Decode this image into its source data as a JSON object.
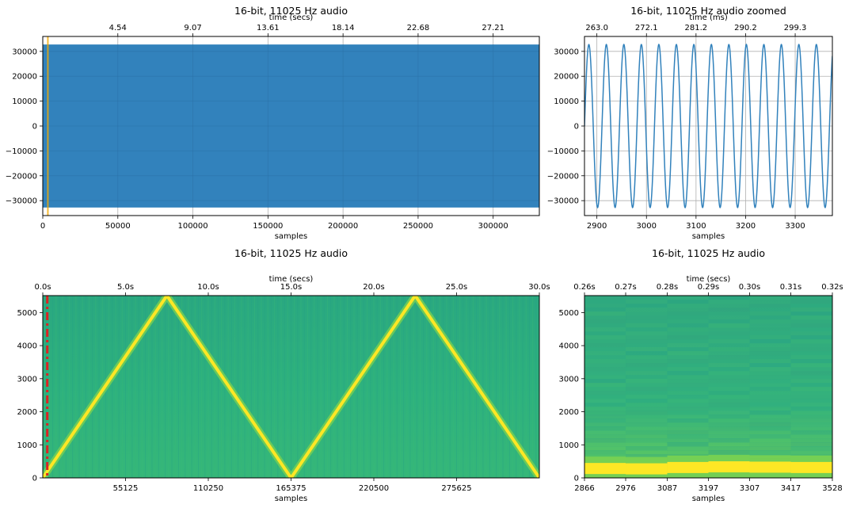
{
  "chart_data": [
    {
      "type": "area",
      "title": "16-bit, 11025 Hz audio",
      "xlabel": "samples",
      "top_xlabel": "time (secs)",
      "xlim": [
        0,
        330750
      ],
      "ylim": [
        -36000,
        36000
      ],
      "x_ticks": [
        0,
        50000,
        100000,
        150000,
        200000,
        250000,
        300000
      ],
      "x_tick_labels": [
        "0",
        "50000",
        "100000",
        "150000",
        "200000",
        "250000",
        "300000"
      ],
      "y_ticks": [
        30000,
        20000,
        10000,
        0,
        -10000,
        -20000,
        -30000
      ],
      "y_tick_labels": [
        "30000",
        "20000",
        "10000",
        "0",
        "−10000",
        "−20000",
        "−30000"
      ],
      "top_ticks": [
        50000,
        100000,
        150000,
        200000,
        250000,
        300000
      ],
      "top_tick_labels": [
        "4.54",
        "9.07",
        "13.61",
        "18.14",
        "22.68",
        "27.21"
      ],
      "envelope": {
        "min": -32767,
        "max": 32767
      },
      "highlight_span": [
        2866,
        3528
      ],
      "grid": true,
      "color": "#3282bc",
      "highlight_color": "#f2a900"
    },
    {
      "type": "line",
      "title": "16-bit, 11025 Hz audio zoomed",
      "xlabel": "samples",
      "top_xlabel": "time (ms)",
      "xlim": [
        2875,
        3375
      ],
      "ylim": [
        -36000,
        36000
      ],
      "x_ticks": [
        2900,
        3000,
        3100,
        3200,
        3300
      ],
      "x_tick_labels": [
        "2900",
        "3000",
        "3100",
        "3200",
        "3300"
      ],
      "y_ticks": [
        30000,
        20000,
        10000,
        0,
        -10000,
        -20000,
        -30000
      ],
      "y_tick_labels": [
        "30000",
        "20000",
        "10000",
        "0",
        "−10000",
        "−20000",
        "−30000"
      ],
      "top_ticks": [
        2900,
        3000,
        3100,
        3200,
        3300
      ],
      "top_tick_labels": [
        "263.0",
        "272.1",
        "281.2",
        "290.2",
        "299.3"
      ],
      "amplitude": 32767,
      "period_samples": 35.3,
      "phase_sample": 2875,
      "grid": true,
      "color": "#3282bc"
    },
    {
      "type": "heatmap",
      "title": "16-bit, 11025 Hz audio",
      "xlabel": "samples",
      "top_xlabel": "time (secs)",
      "xlim": [
        0,
        330750
      ],
      "ylim": [
        0,
        5512.5
      ],
      "x_ticks": [
        55125,
        110250,
        165375,
        220500,
        275625
      ],
      "x_tick_labels": [
        "55125",
        "110250",
        "165375",
        "220500",
        "275625"
      ],
      "y_ticks": [
        5000,
        4000,
        3000,
        2000,
        1000,
        0
      ],
      "y_tick_labels": [
        "5000",
        "4000",
        "3000",
        "2000",
        "1000",
        "0"
      ],
      "top_ticks": [
        0,
        55125,
        110250,
        165375,
        220500,
        275625,
        330750
      ],
      "top_tick_labels": [
        "0.0s",
        "5.0s",
        "10.0s",
        "15.0s",
        "20.0s",
        "25.0s",
        "30.0s"
      ],
      "sweep": {
        "x": [
          0,
          82688,
          165375,
          248063,
          330750
        ],
        "freq": [
          0,
          5512.5,
          0,
          5512.5,
          0
        ]
      },
      "marker_x": 3000,
      "marker_color": "#dd2222",
      "background_color": "#2aae7f",
      "ridge_color": "#fde725"
    },
    {
      "type": "heatmap",
      "title": "16-bit, 11025 Hz audio",
      "xlabel": "samples",
      "top_xlabel": "time (secs)",
      "xlim": [
        2866,
        3528
      ],
      "ylim": [
        0,
        5512.5
      ],
      "x_ticks": [
        2866,
        2976,
        3087,
        3197,
        3307,
        3417,
        3528
      ],
      "x_tick_labels": [
        "2866",
        "2976",
        "3087",
        "3197",
        "3307",
        "3417",
        "3528"
      ],
      "y_ticks": [
        5000,
        4000,
        3000,
        2000,
        1000,
        0
      ],
      "y_tick_labels": [
        "5000",
        "4000",
        "3000",
        "2000",
        "1000",
        "0"
      ],
      "top_ticks": [
        2866,
        2976,
        3087,
        3197,
        3307,
        3417,
        3528
      ],
      "top_tick_labels": [
        "0.26s",
        "0.27s",
        "0.28s",
        "0.29s",
        "0.30s",
        "0.31s",
        "0.32s"
      ],
      "frame_edges": [
        2866,
        2976,
        3087,
        3197,
        3307,
        3417,
        3528
      ],
      "frame_ridge_freq": [
        260,
        250,
        290,
        310,
        300,
        290
      ],
      "background_color": "#2aae7f",
      "ridge_color": "#fde725"
    }
  ]
}
